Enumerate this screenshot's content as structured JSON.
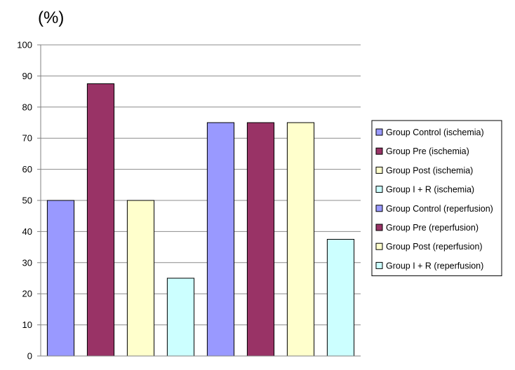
{
  "chart_data": {
    "type": "bar",
    "ylabel": "(%)",
    "ylim": [
      0,
      100
    ],
    "yticks": [
      "0",
      "10",
      "20",
      "30",
      "40",
      "50",
      "60",
      "70",
      "80",
      "90",
      "100"
    ],
    "grid": true,
    "legend_position": "right",
    "series": [
      {
        "name": "Group Control (ischemia)",
        "values": [
          50
        ],
        "color": "#9999ff"
      },
      {
        "name": "Group Pre (ischemia)",
        "values": [
          87.5
        ],
        "color": "#993366"
      },
      {
        "name": "Group Post (ischemia)",
        "values": [
          50
        ],
        "color": "#ffffcc"
      },
      {
        "name": "Group I  + R (ischemia)",
        "values": [
          25
        ],
        "color": "#ccffff"
      },
      {
        "name": "Group Control (reperfusion)",
        "values": [
          75
        ],
        "color": "#9999ff"
      },
      {
        "name": "Group Pre (reperfusion)",
        "values": [
          75
        ],
        "color": "#993366"
      },
      {
        "name": "Group Post (reperfusion)",
        "values": [
          75
        ],
        "color": "#ffffcc"
      },
      {
        "name": "Group I + R (reperfusion)",
        "values": [
          37.5
        ],
        "color": "#ccffff"
      }
    ]
  }
}
